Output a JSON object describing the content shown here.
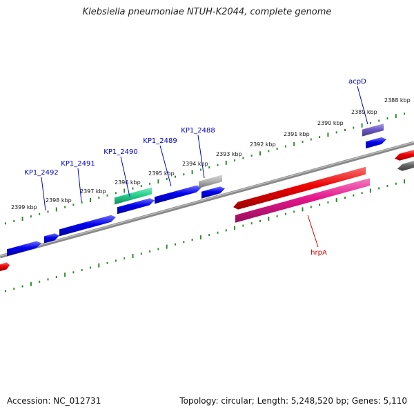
{
  "title": "Klebsiella pneumoniae NTUH-K2044, complete genome",
  "footer": {
    "accession": "Accession: NC_012731",
    "summary": "Topology: circular; Length: 5,248,520 bp; Genes: 5,110"
  },
  "colors": {
    "background": "#ffffff",
    "backbone": "#888888",
    "tick": "#2e8b2e",
    "gene_blue": "#0000ee",
    "gene_red": "#ee0000",
    "gene_pink": "#e6168c",
    "gene_green": "#22d28c",
    "gene_purple": "#6e5ac8",
    "gene_gray": "#b4b4b4",
    "gene_darkgray": "#646464",
    "label_blue": "#0000cc",
    "label_red": "#dd0000"
  },
  "scale_labels": [
    "2399 kbp",
    "2398 kbp",
    "2397 kbp",
    "2396 kbp",
    "2395 kbp",
    "2394 kbp",
    "2393 kbp",
    "2392 kbp",
    "2391 kbp",
    "2390 kbp",
    "2389 kbp",
    "2388 kbp"
  ],
  "gene_labels": [
    {
      "text": "KP1_2492",
      "color": "label_blue"
    },
    {
      "text": "KP1_2491",
      "color": "label_blue"
    },
    {
      "text": "KP1_2490",
      "color": "label_blue"
    },
    {
      "text": "KP1_2489",
      "color": "label_blue"
    },
    {
      "text": "KP1_2488",
      "color": "label_blue"
    },
    {
      "text": "acpD",
      "color": "label_blue"
    },
    {
      "text": "hrpA",
      "color": "label_red"
    }
  ]
}
